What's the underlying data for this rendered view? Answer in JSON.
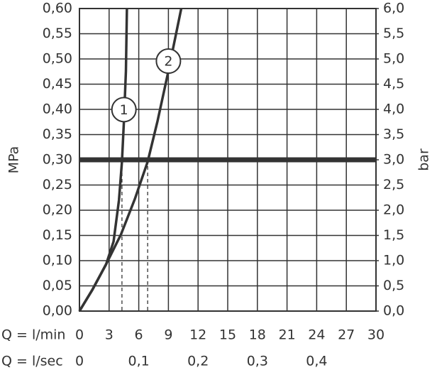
{
  "chart_data": {
    "type": "line",
    "y_label": "MPa",
    "y2_label": "bar",
    "x_label": "Q = l/min",
    "x2_label": "Q = l/sec",
    "xlim": [
      0,
      30
    ],
    "xticks": [
      0,
      3,
      6,
      9,
      12,
      15,
      18,
      21,
      24,
      27,
      30
    ],
    "x2lim": [
      0,
      0.5
    ],
    "x2ticks": [
      0,
      {
        "value": 0.1,
        "label": "0,1"
      },
      {
        "value": 0.2,
        "label": "0,2"
      },
      {
        "value": 0.3,
        "label": "0,3"
      },
      {
        "value": 0.4,
        "label": "0,4"
      }
    ],
    "ylim": [
      0,
      0.6
    ],
    "yticks": [
      {
        "value": 0,
        "label": "0,00"
      },
      {
        "value": 0.05,
        "label": "0,05"
      },
      {
        "value": 0.1,
        "label": "0,10"
      },
      {
        "value": 0.15,
        "label": "0,15"
      },
      {
        "value": 0.2,
        "label": "0,20"
      },
      {
        "value": 0.25,
        "label": "0,25"
      },
      {
        "value": 0.3,
        "label": "0,30"
      },
      {
        "value": 0.35,
        "label": "0,35"
      },
      {
        "value": 0.4,
        "label": "0,40"
      },
      {
        "value": 0.45,
        "label": "0,45"
      },
      {
        "value": 0.5,
        "label": "0,50"
      },
      {
        "value": 0.55,
        "label": "0,55"
      },
      {
        "value": 0.6,
        "label": "0,60"
      }
    ],
    "y2lim": [
      0,
      6
    ],
    "y2ticks": [
      {
        "value": 0,
        "label": "0,0"
      },
      {
        "value": 0.5,
        "label": "0,5"
      },
      {
        "value": 1,
        "label": "1,0"
      },
      {
        "value": 1.5,
        "label": "1,5"
      },
      {
        "value": 2,
        "label": "2,0"
      },
      {
        "value": 2.5,
        "label": "2,5"
      },
      {
        "value": 3,
        "label": "3,0"
      },
      {
        "value": 3.5,
        "label": "3,5"
      },
      {
        "value": 4,
        "label": "4,0"
      },
      {
        "value": 4.5,
        "label": "4,5"
      },
      {
        "value": 5,
        "label": "5,0"
      },
      {
        "value": 5.5,
        "label": "5,5"
      },
      {
        "value": 6,
        "label": "6,0"
      }
    ],
    "grid": true,
    "reference_line": 0.3,
    "dashed_x": [
      4.3,
      6.9
    ],
    "series": [
      {
        "name": "1",
        "color": "#333333",
        "x": [
          0,
          1.3,
          2.7,
          3.45,
          4.0,
          4.3,
          4.5,
          4.7,
          4.8
        ],
        "values": [
          0,
          0.042,
          0.093,
          0.138,
          0.22,
          0.296,
          0.377,
          0.476,
          0.6
        ]
      },
      {
        "name": "2",
        "color": "#333333",
        "x": [
          0,
          1.3,
          2.7,
          4.2,
          5.6,
          6.9,
          7.9,
          9.0,
          10.3
        ],
        "values": [
          0,
          0.042,
          0.093,
          0.152,
          0.222,
          0.296,
          0.377,
          0.476,
          0.6
        ]
      }
    ]
  }
}
